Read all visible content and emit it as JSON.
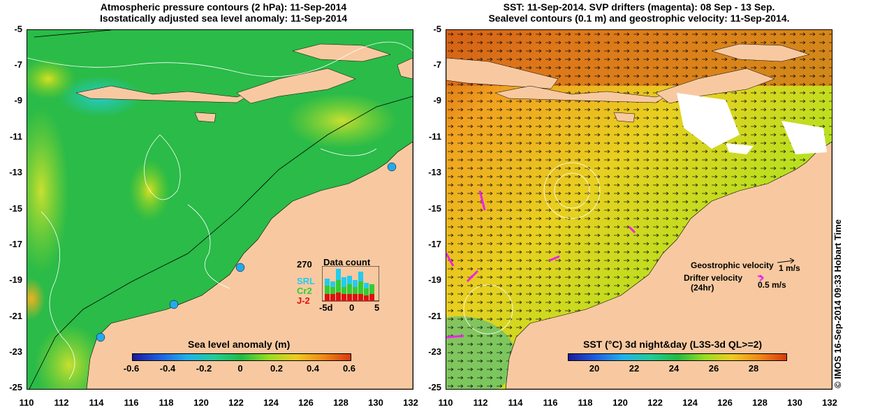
{
  "left_panel": {
    "title_line1": "Atmospheric pressure contours (2 hPa): 11-Sep-2014",
    "title_line2": "Isostatically adjusted sea level anomaly: 11-Sep-2014",
    "colorbar": {
      "label": "Sea level anomaly (m)",
      "ticks": [
        "-0.6",
        "-0.4",
        "-0.2",
        "0",
        "0.2",
        "0.4",
        "0.6"
      ]
    },
    "data_count": {
      "title": "Data count",
      "max_label": "270",
      "series_labels": [
        "SRL",
        "Cr2",
        "J-2"
      ],
      "series_colors": [
        "#22ccee",
        "#33cc33",
        "#dd1111"
      ],
      "x_ticks": [
        "-5d",
        "0",
        "5"
      ]
    }
  },
  "right_panel": {
    "title_line1": "SST: 11-Sep-2014. SVP drifters (magenta): 08 Sep - 13 Sep.",
    "title_line2": "Sealevel contours (0.1 m) and geostrophic velocity: 11-Sep-2014.",
    "colorbar": {
      "label": "SST (°C) 3d night&day (L3S-3d QL>=2)",
      "ticks": [
        "20",
        "22",
        "24",
        "26",
        "28"
      ]
    },
    "legend": {
      "geostrophic_label": "Geostrophic velocity",
      "geostrophic_scale": "1 m/s",
      "drifter_label_line1": "Drifter velocity",
      "drifter_label_line2": "(24hr)",
      "drifter_scale": "0.5 m/s"
    }
  },
  "axes": {
    "y_ticks": [
      "-5",
      "-7",
      "-9",
      "-11",
      "-13",
      "-15",
      "-17",
      "-19",
      "-21",
      "-23",
      "-25"
    ],
    "x_ticks": [
      "110",
      "112",
      "114",
      "116",
      "118",
      "120",
      "122",
      "124",
      "126",
      "128",
      "130",
      "132"
    ]
  },
  "credit": "© IMOS 16-Sep-2014 09:33 Hobart Time",
  "colors": {
    "land": "#f8c9a0",
    "sla_ocean": "#22bb44",
    "sst_warm": "#f0a020",
    "sst_cool": "#88dd22",
    "drifter": "#ee22ee"
  }
}
